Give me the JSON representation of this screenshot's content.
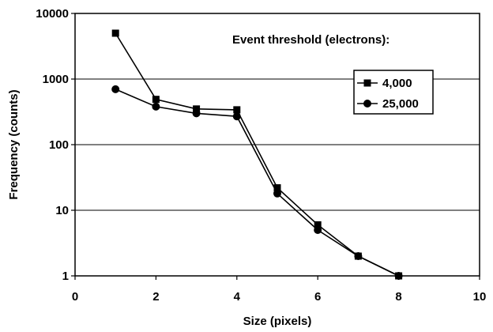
{
  "chart_data": {
    "type": "line",
    "xlabel": "Size (pixels)",
    "ylabel": "Frequency (counts)",
    "xlim": [
      0,
      10
    ],
    "ylim": [
      1,
      10000
    ],
    "yscale": "log",
    "grid": "horizontal",
    "x_ticks": [
      "0",
      "2",
      "4",
      "6",
      "8",
      "10"
    ],
    "y_ticks": [
      "1",
      "10",
      "100",
      "1000",
      "10000"
    ],
    "legend_title": "Event threshold (electrons):",
    "legend_position": "right",
    "series": [
      {
        "name": "4,000",
        "marker": "square",
        "x": [
          1,
          2,
          3,
          4,
          5,
          6,
          7,
          8
        ],
        "y": [
          5000,
          490,
          350,
          340,
          22,
          6,
          2,
          1
        ]
      },
      {
        "name": "25,000",
        "marker": "circle",
        "x": [
          1,
          2,
          3,
          4,
          5,
          6,
          7,
          8
        ],
        "y": [
          700,
          380,
          300,
          270,
          18,
          5,
          2,
          1
        ]
      }
    ]
  }
}
